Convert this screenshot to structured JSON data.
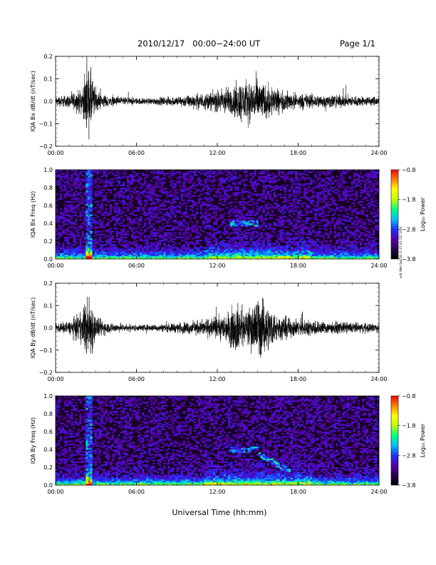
{
  "header": {
    "title": "2010/12/17   00:00−24:00 UT",
    "page": "Page 1/1"
  },
  "x_axis_title": "Universal Time (hh:mm)",
  "time_ticks": [
    "00:00",
    "06:00",
    "12:00",
    "18:00",
    "24:00"
  ],
  "side_stamp": "edit Wed Sep 28 11:07:43 CST 2016",
  "colors": {
    "colorbar_stops": [
      "#000000",
      "#2a0050",
      "#5a00b0",
      "#2030ff",
      "#00c0ff",
      "#00ff80",
      "#c0ff00",
      "#ffff00",
      "#ff8000",
      "#ff0000"
    ],
    "waveform": "#000000",
    "spectrogram_background": "#180020"
  },
  "chart_data": [
    {
      "type": "line",
      "panel": "bx-waveform",
      "ylabel": "IQA Bx dB/dt (nT/sec)",
      "xlim": [
        "00:00",
        "24:00"
      ],
      "ylim": [
        -0.2,
        0.2
      ],
      "yticks": [
        "0.2",
        "0.1",
        "0.0",
        "−0.1",
        "−0.2"
      ],
      "ytick_values": [
        0.2,
        0.1,
        0.0,
        -0.1,
        -0.2
      ],
      "envelope_hours": [
        0,
        1,
        2,
        2.3,
        2.6,
        3,
        4,
        5,
        6,
        7,
        8,
        9,
        10,
        11,
        11.8,
        12.5,
        13,
        13.5,
        14,
        14.5,
        15,
        15.5,
        16,
        16.5,
        17,
        18,
        19,
        20,
        21,
        22,
        23,
        24
      ],
      "envelope_amplitude": [
        0.03,
        0.04,
        0.08,
        0.2,
        0.2,
        0.06,
        0.03,
        0.025,
        0.02,
        0.02,
        0.025,
        0.03,
        0.04,
        0.05,
        0.06,
        0.09,
        0.08,
        0.12,
        0.14,
        0.12,
        0.15,
        0.1,
        0.11,
        0.07,
        0.06,
        0.05,
        0.045,
        0.04,
        0.04,
        0.035,
        0.03,
        0.03
      ]
    },
    {
      "type": "heatmap",
      "panel": "bx-spectrogram",
      "ylabel": "IQA Bx Freq (Hz)",
      "xlim": [
        "00:00",
        "24:00"
      ],
      "ylim": [
        0.0,
        1.0
      ],
      "yticks": [
        "1.0",
        "0.8",
        "0.6",
        "0.4",
        "0.2",
        "0.0"
      ],
      "ytick_values": [
        1.0,
        0.8,
        0.6,
        0.4,
        0.2,
        0.0
      ],
      "colorbar_label": "Log₁₀ Power",
      "colorbar_ticks": [
        "−0.8",
        "−1.8",
        "−2.8",
        "−3.8"
      ],
      "colorbar_tick_values": [
        -0.8,
        -1.8,
        -2.8,
        -3.8
      ],
      "clim": [
        -3.8,
        -0.8
      ]
    },
    {
      "type": "line",
      "panel": "by-waveform",
      "ylabel": "IQA By dB/dt (nT/sec)",
      "xlim": [
        "00:00",
        "24:00"
      ],
      "ylim": [
        -0.2,
        0.2
      ],
      "yticks": [
        "0.2",
        "0.1",
        "0.0",
        "−0.1",
        "−0.2"
      ],
      "ytick_values": [
        0.2,
        0.1,
        0.0,
        -0.1,
        -0.2
      ],
      "envelope_hours": [
        0,
        1,
        2,
        2.3,
        2.6,
        3,
        4,
        5,
        6,
        7,
        8,
        9,
        10,
        11,
        12,
        12.5,
        13,
        13.5,
        14,
        14.5,
        15,
        15.5,
        16,
        16.5,
        17,
        18,
        19,
        20,
        21,
        22,
        23,
        24
      ],
      "envelope_amplitude": [
        0.03,
        0.04,
        0.1,
        0.2,
        0.2,
        0.07,
        0.03,
        0.025,
        0.02,
        0.02,
        0.025,
        0.03,
        0.04,
        0.05,
        0.07,
        0.08,
        0.12,
        0.16,
        0.1,
        0.14,
        0.2,
        0.16,
        0.12,
        0.08,
        0.07,
        0.05,
        0.05,
        0.04,
        0.035,
        0.035,
        0.03,
        0.03
      ]
    },
    {
      "type": "heatmap",
      "panel": "by-spectrogram",
      "ylabel": "IQA By Freq (Hz)",
      "xlim": [
        "00:00",
        "24:00"
      ],
      "ylim": [
        0.0,
        1.0
      ],
      "yticks": [
        "1.0",
        "0.8",
        "0.6",
        "0.4",
        "0.2",
        "0.0"
      ],
      "ytick_values": [
        1.0,
        0.8,
        0.6,
        0.4,
        0.2,
        0.0
      ],
      "colorbar_label": "Log₁₀ Power",
      "colorbar_ticks": [
        "−0.8",
        "−1.8",
        "−2.8",
        "−3.8"
      ],
      "colorbar_tick_values": [
        -0.8,
        -1.8,
        -2.8,
        -3.8
      ],
      "clim": [
        -3.8,
        -0.8
      ]
    }
  ]
}
